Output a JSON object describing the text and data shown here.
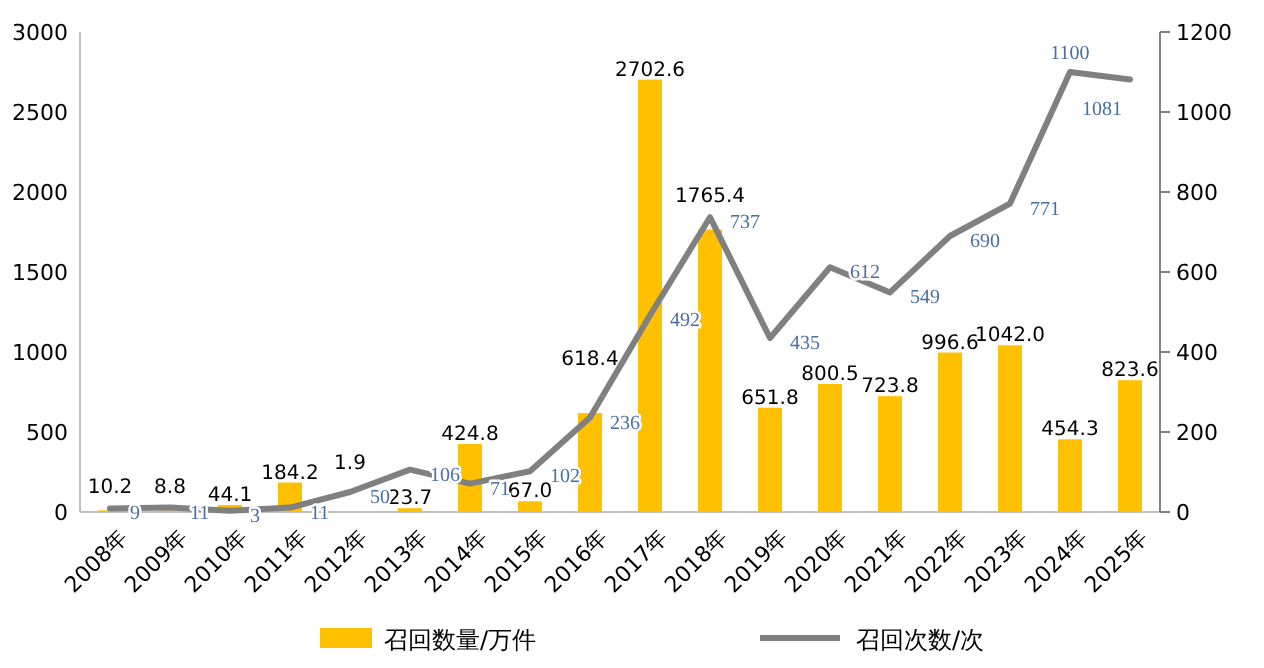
{
  "chart_data": {
    "type": "bar",
    "categories": [
      "2008年",
      "2009年",
      "2010年",
      "2011年",
      "2012年",
      "2013年",
      "2014年",
      "2015年",
      "2016年",
      "2017年",
      "2018年",
      "2019年",
      "2020年",
      "2021年",
      "2022年",
      "2023年",
      "2024年",
      "2025年"
    ],
    "series": [
      {
        "name": "召回数量/万件",
        "color": "#ffc000",
        "values": [
          10.2,
          8.8,
          44.1,
          184.2,
          1.9,
          23.7,
          424.8,
          67.0,
          618.4,
          2702.6,
          1765.4,
          651.8,
          800.5,
          723.8,
          996.6,
          1042.0,
          454.3,
          823.6
        ],
        "value_labels": [
          "10.2",
          "8.8",
          "44.1",
          "184.2",
          "1.9",
          "23.7",
          "424.8",
          "67.0",
          "618.4",
          "2702.6",
          "1765.4",
          "651.8",
          "800.5",
          "723.8",
          "996.6",
          "1042.0",
          "454.3",
          "823.6"
        ]
      },
      {
        "name": "召回次数/次",
        "type": "line",
        "axis": "y2",
        "color": "#808080",
        "values": [
          9,
          11,
          3,
          11,
          50,
          106,
          71,
          102,
          236,
          492,
          737,
          435,
          612,
          549,
          690,
          771,
          1100,
          1081
        ]
      }
    ],
    "ylim": [
      0,
      3000
    ],
    "yticks": [
      0,
      500,
      1000,
      1500,
      2000,
      2500,
      3000
    ],
    "y2lim": [
      0,
      1200
    ],
    "y2ticks": [
      0,
      200,
      400,
      600,
      800,
      1000,
      1200
    ],
    "data_labels": true,
    "legend": "bottom",
    "grid": false,
    "marker": "none",
    "line_style": "solid"
  }
}
